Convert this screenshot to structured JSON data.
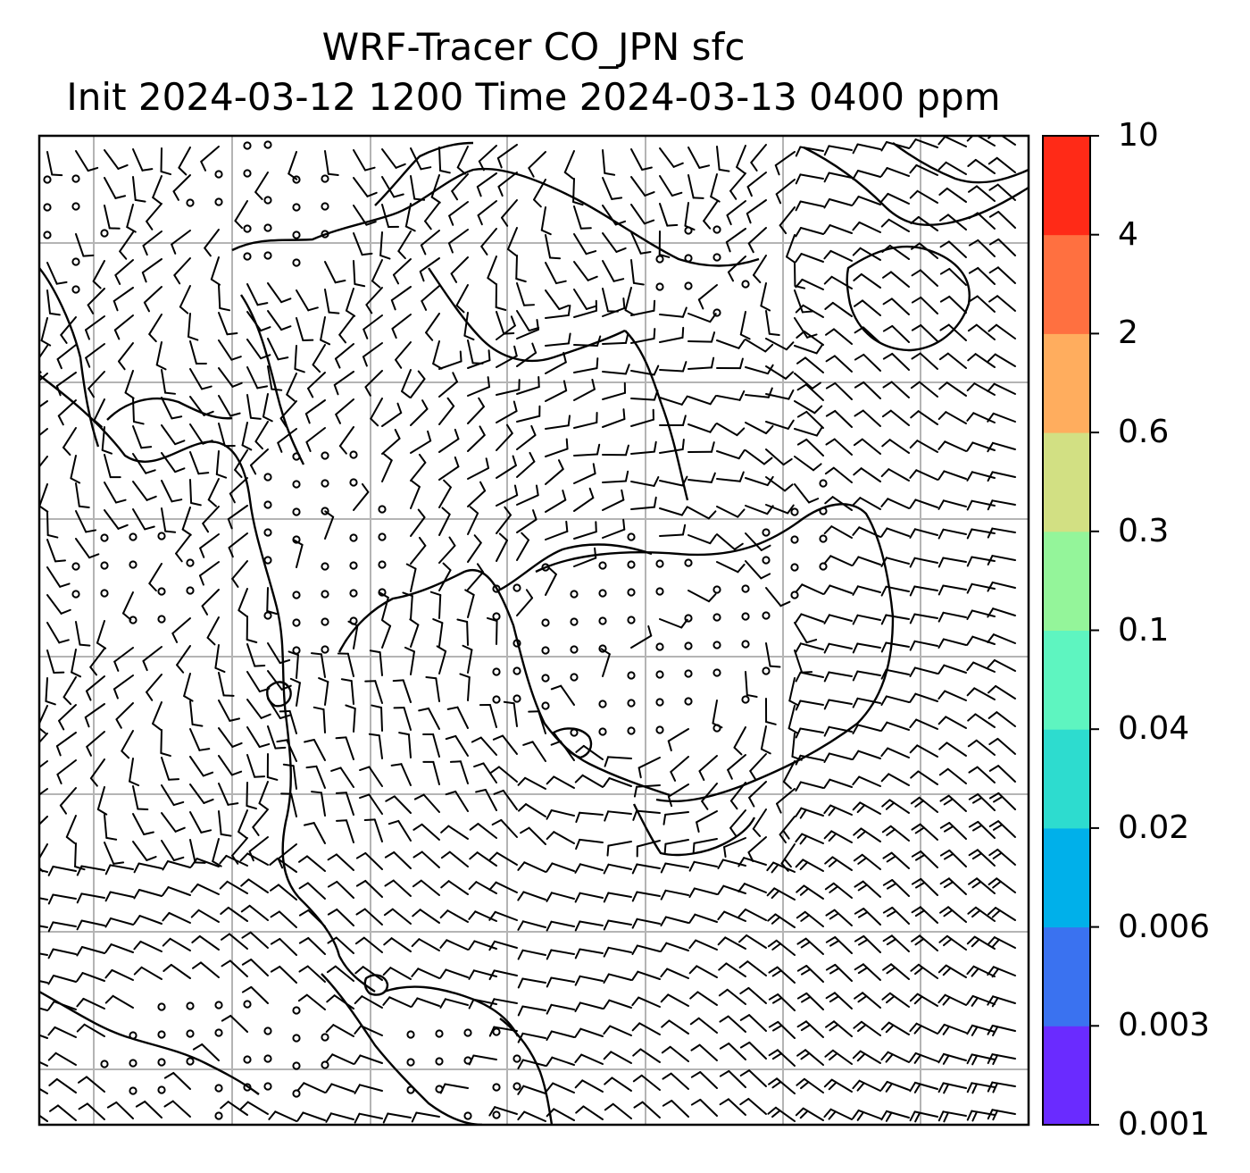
{
  "title": {
    "line1": "WRF-Tracer CO_JPN sfc",
    "line2": "Init 2024-03-12 1200 Time 2024-03-13 0400 ppm"
  },
  "colorbar": {
    "levels": [
      "0.001",
      "0.003",
      "0.006",
      "0.02",
      "0.04",
      "0.1",
      "0.3",
      "0.6",
      "2",
      "4",
      "10"
    ],
    "colors": [
      "#6a2bff",
      "#3a72f0",
      "#00b0ea",
      "#2ddccf",
      "#5ef5c0",
      "#94f59a",
      "#d2e083",
      "#ffad5e",
      "#ff7040",
      "#ff2a17"
    ]
  },
  "map": {
    "background": "#ffffff",
    "gridline_color": "#b4b4b4",
    "coastline_color": "#000000",
    "barb_color": "#000000",
    "wind_symbol": "wind-barb",
    "calm_symbol": "calm-circle"
  }
}
